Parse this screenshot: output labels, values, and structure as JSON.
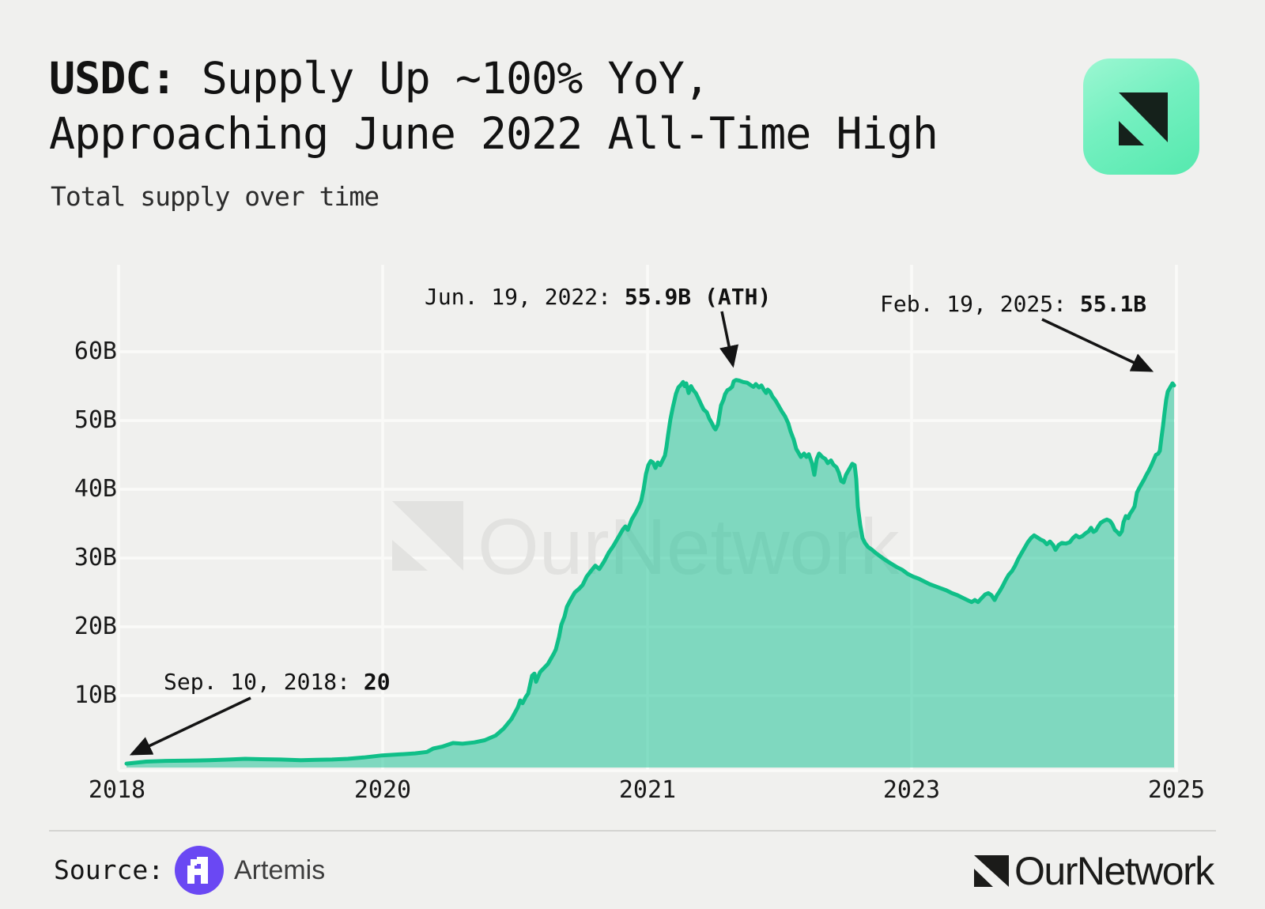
{
  "page": {
    "background": "#f0f0ee"
  },
  "header": {
    "title_bold": "USDC:",
    "title_line1_rest": " Supply Up ~100% YoY,",
    "title_line2": "Approaching June 2022 All-Time High",
    "subtitle": "Total supply over time"
  },
  "brand": {
    "watermark_text": "OurNetwork",
    "logo_gradient_from": "#9cf7d2",
    "logo_gradient_to": "#55e9ae",
    "logo_mark_color": "#15211b"
  },
  "footer": {
    "source_label": "Source:",
    "source_name": "Artemis",
    "artemis_purple": "#6a48f3",
    "brand_wordmark": "OurNetwork"
  },
  "annotations": [
    {
      "prefix": "Jun. 19, 2022: ",
      "value": "55.9B (ATH)"
    },
    {
      "prefix": "Feb. 19, 2025: ",
      "value": "55.1B"
    },
    {
      "prefix": "Sep. 10, 2018: ",
      "value": "20"
    }
  ],
  "chart_data": {
    "type": "area",
    "title": "Total supply over time",
    "unit": "USDC total supply (billions)",
    "x_tick_labels": [
      "2018",
      "2020",
      "2021",
      "2023",
      "2025"
    ],
    "y_tick_labels": [
      "10B",
      "20B",
      "30B",
      "40B",
      "50B",
      "60B"
    ],
    "y_tick_values": [
      10,
      20,
      30,
      40,
      50,
      60
    ],
    "ylim": [
      0,
      62
    ],
    "grid": true,
    "legend": false,
    "line_color": "#10bf88",
    "fill_color": "rgba(14,192,144,0.5)",
    "key_points": [
      {
        "date": "Sep. 10, 2018",
        "value_label": "20",
        "value_billions": 0.0
      },
      {
        "date": "Jun. 19, 2022",
        "value_label": "55.9B",
        "value_billions": 55.9,
        "note": "ATH"
      },
      {
        "date": "Feb. 19, 2025",
        "value_label": "55.1B",
        "value_billions": 55.1
      }
    ],
    "series_points": [
      [
        160,
        0.1
      ],
      [
        185,
        0.4
      ],
      [
        210,
        0.5
      ],
      [
        240,
        0.55
      ],
      [
        265,
        0.6
      ],
      [
        290,
        0.7
      ],
      [
        310,
        0.8
      ],
      [
        330,
        0.75
      ],
      [
        355,
        0.7
      ],
      [
        380,
        0.6
      ],
      [
        400,
        0.65
      ],
      [
        420,
        0.7
      ],
      [
        440,
        0.8
      ],
      [
        460,
        1.0
      ],
      [
        483,
        1.3
      ],
      [
        505,
        1.45
      ],
      [
        525,
        1.6
      ],
      [
        540,
        1.8
      ],
      [
        548,
        2.3
      ],
      [
        560,
        2.6
      ],
      [
        573,
        3.1
      ],
      [
        585,
        3.0
      ],
      [
        600,
        3.2
      ],
      [
        613,
        3.5
      ],
      [
        627,
        4.2
      ],
      [
        637,
        5.2
      ],
      [
        647,
        6.6
      ],
      [
        655,
        8.3
      ],
      [
        658,
        9.3
      ],
      [
        661,
        8.9
      ],
      [
        665,
        9.8
      ],
      [
        668,
        10.3
      ],
      [
        673,
        12.9
      ],
      [
        676,
        13.2
      ],
      [
        678,
        12.0
      ],
      [
        683,
        13.4
      ],
      [
        693,
        14.6
      ],
      [
        700,
        16.0
      ],
      [
        703,
        16.7
      ],
      [
        707,
        18.5
      ],
      [
        710,
        20.3
      ],
      [
        714,
        21.5
      ],
      [
        717,
        22.9
      ],
      [
        722,
        24.0
      ],
      [
        727,
        25.0
      ],
      [
        733,
        25.6
      ],
      [
        737,
        26.1
      ],
      [
        742,
        27.3
      ],
      [
        748,
        28.2
      ],
      [
        753,
        28.9
      ],
      [
        758,
        28.4
      ],
      [
        764,
        29.5
      ],
      [
        770,
        30.8
      ],
      [
        776,
        31.8
      ],
      [
        782,
        33.0
      ],
      [
        788,
        34.2
      ],
      [
        791,
        34.6
      ],
      [
        794,
        34.1
      ],
      [
        799,
        35.6
      ],
      [
        804,
        36.6
      ],
      [
        808,
        37.5
      ],
      [
        811,
        38.3
      ],
      [
        814,
        40.0
      ],
      [
        817,
        42.2
      ],
      [
        820,
        43.5
      ],
      [
        823,
        44.1
      ],
      [
        826,
        43.9
      ],
      [
        829,
        43.1
      ],
      [
        832,
        43.9
      ],
      [
        835,
        43.5
      ],
      [
        838,
        44.2
      ],
      [
        841,
        44.9
      ],
      [
        843,
        46.2
      ],
      [
        845,
        47.9
      ],
      [
        848,
        50.2
      ],
      [
        851,
        51.9
      ],
      [
        855,
        53.9
      ],
      [
        858,
        54.8
      ],
      [
        862,
        55.3
      ],
      [
        864,
        55.6
      ],
      [
        866,
        55.0
      ],
      [
        868,
        55.4
      ],
      [
        871,
        54.0
      ],
      [
        874,
        55.0
      ],
      [
        877,
        54.4
      ],
      [
        880,
        54.0
      ],
      [
        883,
        53.3
      ],
      [
        887,
        52.3
      ],
      [
        890,
        51.6
      ],
      [
        894,
        51.2
      ],
      [
        897,
        50.3
      ],
      [
        900,
        49.7
      ],
      [
        903,
        49.0
      ],
      [
        905,
        48.7
      ],
      [
        908,
        49.4
      ],
      [
        910,
        50.8
      ],
      [
        912,
        52.2
      ],
      [
        915,
        53.0
      ],
      [
        917,
        53.8
      ],
      [
        920,
        54.4
      ],
      [
        923,
        54.6
      ],
      [
        926,
        54.9
      ],
      [
        928,
        55.7
      ],
      [
        931,
        55.9
      ],
      [
        935,
        55.8
      ],
      [
        940,
        55.6
      ],
      [
        945,
        55.5
      ],
      [
        950,
        55.1
      ],
      [
        953,
        54.9
      ],
      [
        956,
        55.3
      ],
      [
        960,
        54.8
      ],
      [
        963,
        55.1
      ],
      [
        966,
        54.5
      ],
      [
        969,
        54.0
      ],
      [
        971,
        54.5
      ],
      [
        974,
        54.2
      ],
      [
        977,
        53.5
      ],
      [
        981,
        52.9
      ],
      [
        985,
        52.1
      ],
      [
        989,
        51.3
      ],
      [
        993,
        50.6
      ],
      [
        997,
        49.6
      ],
      [
        1000,
        48.4
      ],
      [
        1004,
        47.2
      ],
      [
        1007,
        45.9
      ],
      [
        1010,
        45.3
      ],
      [
        1013,
        44.7
      ],
      [
        1017,
        45.2
      ],
      [
        1020,
        44.7
      ],
      [
        1023,
        45.1
      ],
      [
        1027,
        43.8
      ],
      [
        1030,
        42.1
      ],
      [
        1033,
        44.4
      ],
      [
        1036,
        45.2
      ],
      [
        1040,
        44.7
      ],
      [
        1044,
        44.4
      ],
      [
        1047,
        43.8
      ],
      [
        1051,
        44.2
      ],
      [
        1054,
        43.6
      ],
      [
        1058,
        43.2
      ],
      [
        1061,
        42.4
      ],
      [
        1064,
        41.2
      ],
      [
        1067,
        41.0
      ],
      [
        1070,
        42.1
      ],
      [
        1074,
        42.9
      ],
      [
        1078,
        43.7
      ],
      [
        1081,
        43.5
      ],
      [
        1083,
        41.5
      ],
      [
        1085,
        37.5
      ],
      [
        1088,
        34.8
      ],
      [
        1091,
        32.9
      ],
      [
        1094,
        32.2
      ],
      [
        1098,
        31.6
      ],
      [
        1103,
        31.2
      ],
      [
        1108,
        30.7
      ],
      [
        1114,
        30.2
      ],
      [
        1120,
        29.7
      ],
      [
        1127,
        29.2
      ],
      [
        1134,
        28.7
      ],
      [
        1141,
        28.3
      ],
      [
        1148,
        27.7
      ],
      [
        1155,
        27.3
      ],
      [
        1162,
        27.0
      ],
      [
        1169,
        26.6
      ],
      [
        1176,
        26.2
      ],
      [
        1183,
        25.9
      ],
      [
        1190,
        25.6
      ],
      [
        1197,
        25.3
      ],
      [
        1204,
        24.9
      ],
      [
        1211,
        24.6
      ],
      [
        1218,
        24.2
      ],
      [
        1225,
        23.8
      ],
      [
        1229,
        23.6
      ],
      [
        1233,
        23.9
      ],
      [
        1237,
        23.6
      ],
      [
        1241,
        24.1
      ],
      [
        1246,
        24.7
      ],
      [
        1250,
        24.9
      ],
      [
        1254,
        24.6
      ],
      [
        1258,
        23.9
      ],
      [
        1261,
        24.6
      ],
      [
        1264,
        25.1
      ],
      [
        1268,
        25.9
      ],
      [
        1272,
        26.8
      ],
      [
        1276,
        27.6
      ],
      [
        1280,
        28.1
      ],
      [
        1284,
        28.9
      ],
      [
        1288,
        29.9
      ],
      [
        1292,
        30.7
      ],
      [
        1296,
        31.5
      ],
      [
        1300,
        32.3
      ],
      [
        1304,
        32.9
      ],
      [
        1308,
        33.3
      ],
      [
        1312,
        33.0
      ],
      [
        1316,
        32.7
      ],
      [
        1320,
        32.5
      ],
      [
        1324,
        32.0
      ],
      [
        1328,
        32.4
      ],
      [
        1332,
        31.9
      ],
      [
        1335,
        31.2
      ],
      [
        1339,
        31.9
      ],
      [
        1343,
        32.2
      ],
      [
        1348,
        32.1
      ],
      [
        1353,
        32.3
      ],
      [
        1357,
        32.9
      ],
      [
        1361,
        33.3
      ],
      [
        1365,
        33.0
      ],
      [
        1369,
        33.2
      ],
      [
        1373,
        33.6
      ],
      [
        1377,
        33.9
      ],
      [
        1380,
        34.4
      ],
      [
        1383,
        33.8
      ],
      [
        1386,
        34.0
      ],
      [
        1389,
        34.6
      ],
      [
        1392,
        35.1
      ],
      [
        1396,
        35.4
      ],
      [
        1400,
        35.6
      ],
      [
        1404,
        35.4
      ],
      [
        1407,
        34.9
      ],
      [
        1410,
        34.1
      ],
      [
        1413,
        33.8
      ],
      [
        1416,
        33.4
      ],
      [
        1419,
        33.9
      ],
      [
        1421,
        35.2
      ],
      [
        1424,
        36.1
      ],
      [
        1427,
        35.8
      ],
      [
        1429,
        36.4
      ],
      [
        1432,
        36.9
      ],
      [
        1435,
        37.5
      ],
      [
        1438,
        39.5
      ],
      [
        1441,
        40.2
      ],
      [
        1444,
        40.8
      ],
      [
        1447,
        41.4
      ],
      [
        1450,
        42.1
      ],
      [
        1453,
        42.7
      ],
      [
        1456,
        43.4
      ],
      [
        1459,
        44.2
      ],
      [
        1462,
        45.0
      ],
      [
        1465,
        45.2
      ],
      [
        1467,
        45.6
      ],
      [
        1469,
        47.5
      ],
      [
        1471,
        49.2
      ],
      [
        1473,
        51.2
      ],
      [
        1475,
        53.0
      ],
      [
        1477,
        54.2
      ],
      [
        1480,
        54.8
      ],
      [
        1483,
        55.4
      ],
      [
        1485,
        55.1
      ]
    ]
  }
}
